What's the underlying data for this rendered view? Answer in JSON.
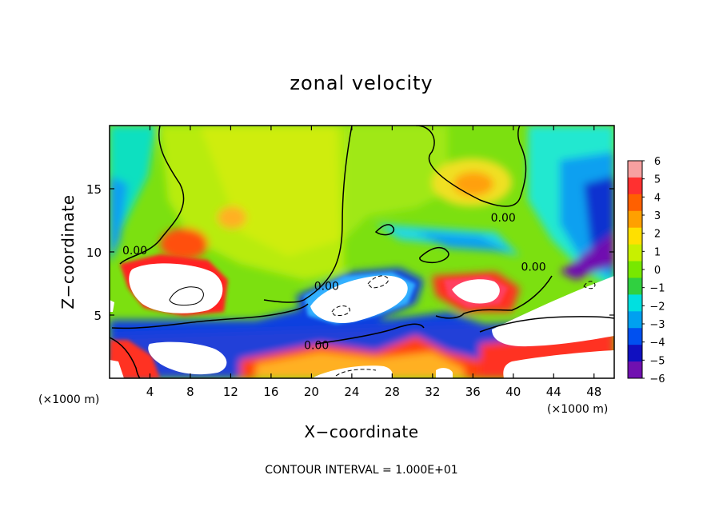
{
  "chart_data": {
    "type": "heatmap",
    "title": "zonal velocity",
    "xlabel": "X−coordinate",
    "ylabel": "Z−coordinate",
    "x_unit": "(×1000 m)",
    "z_unit": "(×1000 m)",
    "xlim": [
      0,
      50
    ],
    "ylim": [
      0,
      20
    ],
    "x_ticks": [
      4,
      8,
      12,
      16,
      20,
      24,
      28,
      32,
      36,
      40,
      44,
      48
    ],
    "y_ticks": [
      5,
      10,
      15
    ],
    "colorbar": {
      "levels": [
        6,
        5,
        4,
        3,
        2,
        1,
        0,
        -1,
        -2,
        -3,
        -4,
        -5,
        -6
      ],
      "labels": [
        "6",
        "5",
        "4",
        "3",
        "2",
        "1",
        "0",
        "−1",
        "−2",
        "−3",
        "−4",
        "−5",
        "−6"
      ],
      "colors": [
        "#f7a0a0",
        "#ff3030",
        "#ff6000",
        "#ffa000",
        "#ffe000",
        "#c8f000",
        "#78e800",
        "#30d040",
        "#00e0e0",
        "#00a0f0",
        "#0050f0",
        "#1010c0",
        "#7010b0"
      ]
    },
    "contour_labels": [
      {
        "x": 2.5,
        "z": 9.8,
        "text": "0.00"
      },
      {
        "x": 21.5,
        "z": 7.0,
        "text": "0.00"
      },
      {
        "x": 20.5,
        "z": 2.3,
        "text": "0.00"
      },
      {
        "x": 39.0,
        "z": 12.4,
        "text": "0.00"
      },
      {
        "x": 42.0,
        "z": 8.5,
        "text": "0.00"
      }
    ],
    "footnote": "CONTOUR INTERVAL = 1.000E+01"
  }
}
